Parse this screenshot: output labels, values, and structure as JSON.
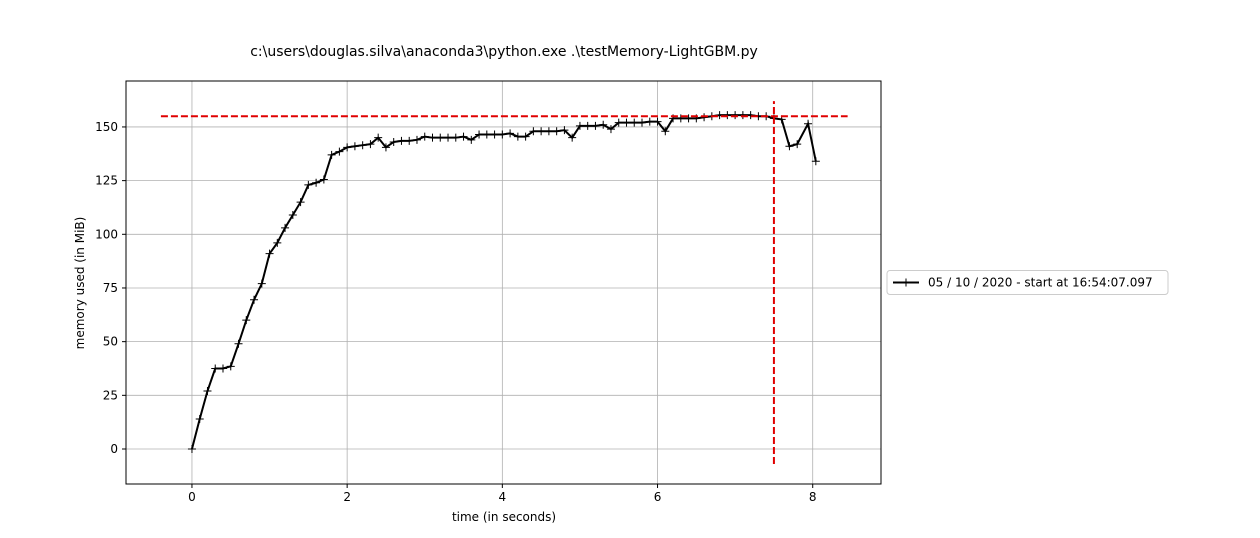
{
  "chart_data": {
    "type": "line",
    "title": "c:\\users\\douglas.silva\\anaconda3\\python.exe .\\testMemory-LightGBM.py",
    "x_label": "time (in seconds)",
    "y_label": "memory used (in MiB)",
    "x": [
      0,
      0.1,
      0.2,
      0.3,
      0.4,
      0.5,
      0.6,
      0.7,
      0.8,
      0.9,
      1.0,
      1.1,
      1.2,
      1.3,
      1.4,
      1.5,
      1.6,
      1.7,
      1.8,
      1.9,
      2.0,
      2.1,
      2.2,
      2.3,
      2.4,
      2.5,
      2.6,
      2.7,
      2.8,
      2.9,
      3.0,
      3.1,
      3.2,
      3.3,
      3.4,
      3.5,
      3.6,
      3.7,
      3.8,
      3.9,
      4.0,
      4.1,
      4.2,
      4.3,
      4.4,
      4.5,
      4.6,
      4.7,
      4.8,
      4.9,
      5.0,
      5.1,
      5.2,
      5.3,
      5.4,
      5.5,
      5.6,
      5.7,
      5.8,
      5.9,
      6.0,
      6.1,
      6.2,
      6.3,
      6.4,
      6.5,
      6.6,
      6.7,
      6.8,
      6.9,
      7.0,
      7.1,
      7.2,
      7.3,
      7.4,
      7.5,
      7.6,
      7.7,
      7.8,
      7.94,
      8.04
    ],
    "series": [
      {
        "name": "05 / 10 / 2020 - start at 16:54:07.097",
        "color": "#000000",
        "values": [
          0,
          14,
          27,
          37.5,
          37.5,
          38.5,
          49,
          60,
          69.5,
          77,
          91,
          96,
          103,
          109,
          115,
          123,
          124,
          125.5,
          137,
          138.5,
          140.5,
          141,
          141.5,
          142,
          145,
          140.5,
          143,
          143.5,
          143.5,
          144,
          145.5,
          145,
          145,
          145,
          145,
          145.5,
          144,
          146.5,
          146.5,
          146.5,
          146.5,
          147,
          145.5,
          145.5,
          148,
          148,
          148,
          148,
          148.5,
          145,
          150.5,
          150.5,
          150.5,
          151,
          149,
          152,
          152,
          152,
          152,
          152.5,
          152.5,
          148,
          154,
          154,
          154,
          154,
          154.5,
          155,
          155.5,
          155.5,
          155.5,
          155.5,
          155.5,
          155,
          155,
          154,
          153.5,
          141,
          142,
          151.5,
          134
        ]
      }
    ],
    "max_line": {
      "y": 155,
      "x": [
        -0.4,
        8.45
      ],
      "color": "#e00000"
    },
    "end_line": {
      "x": 7.5,
      "y": [
        -7,
        162
      ],
      "color": "#e00000"
    },
    "xlim": [
      -0.85,
      8.88
    ],
    "ylim": [
      -16.3,
      171.4
    ],
    "xticks": [
      0,
      2,
      4,
      6,
      8
    ],
    "yticks": [
      0,
      25,
      50,
      75,
      100,
      125,
      150
    ],
    "grid": true,
    "legend": "right"
  }
}
